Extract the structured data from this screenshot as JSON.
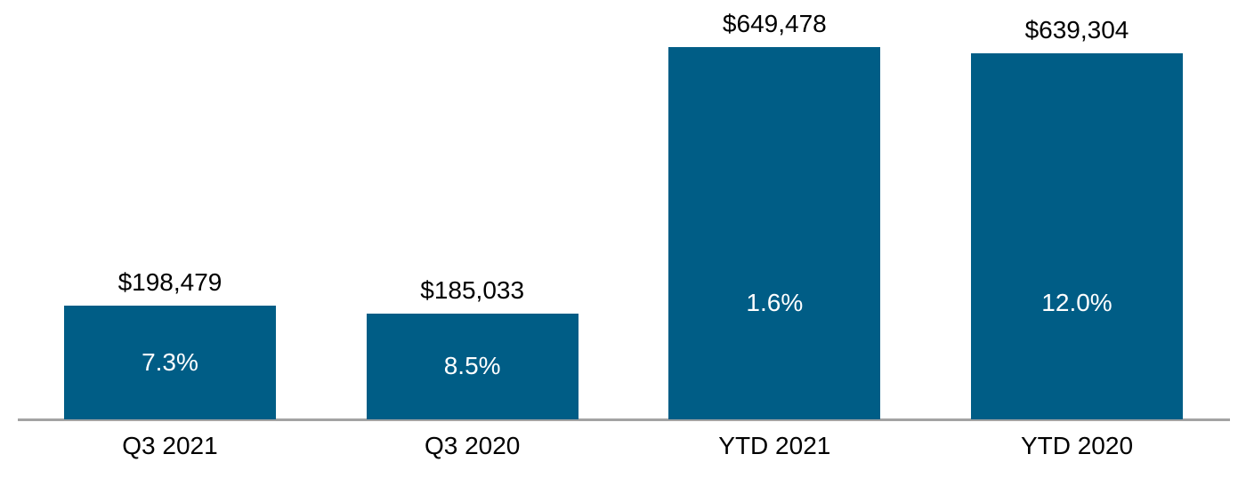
{
  "chart_data": {
    "type": "bar",
    "title": "",
    "xlabel": "",
    "ylabel": "",
    "categories": [
      "Q3 2021",
      "Q3 2020",
      "YTD 2021",
      "YTD 2020"
    ],
    "values": [
      198479,
      185033,
      649478,
      639304
    ],
    "value_labels": [
      "$198,479",
      "$185,033",
      "$649,478",
      "$639,304"
    ],
    "pct_labels": [
      "7.3%",
      "8.5%",
      "1.6%",
      "12.0%"
    ],
    "ylim": [
      0,
      649478
    ],
    "grid": false,
    "legend": false,
    "colors": {
      "bar_fill": "#005d86",
      "value_label_text": "#000000",
      "pct_label_text": "#ffffff",
      "category_label_text": "#000000",
      "axis_line": "#a3a3a3",
      "background": "#ffffff"
    },
    "layout_hints": {
      "value_label_position": "above-bar",
      "pct_label_position": "inside-bar",
      "y_axis_visible": false,
      "x_axis_line_visible": true
    }
  }
}
